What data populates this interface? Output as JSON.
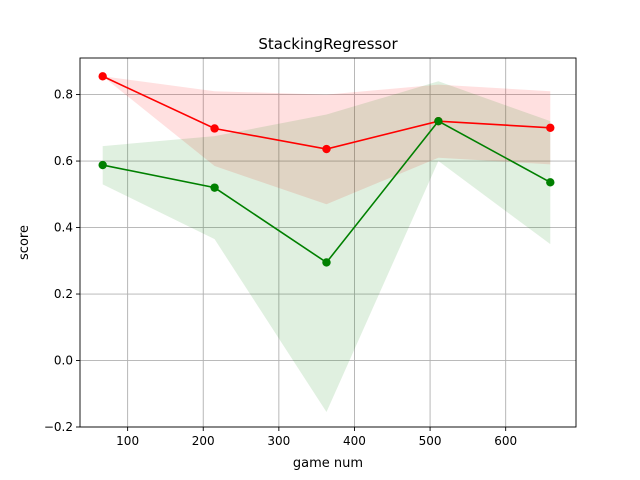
{
  "chart_data": {
    "type": "line",
    "title": "StackingRegressor",
    "xlabel": "game num",
    "ylabel": "score",
    "xlim": [
      37,
      693
    ],
    "ylim": [
      -0.2,
      0.91
    ],
    "xticks": [
      100,
      200,
      300,
      400,
      500,
      600
    ],
    "yticks": [
      -0.2,
      0.0,
      0.2,
      0.4,
      0.6,
      0.8
    ],
    "xtick_labels": [
      "100",
      "200",
      "300",
      "400",
      "500",
      "600"
    ],
    "ytick_labels": [
      "−0.2",
      "0.0",
      "0.2",
      "0.4",
      "0.6",
      "0.8"
    ],
    "grid": true,
    "x": [
      67,
      215,
      363,
      511,
      659
    ],
    "series": [
      {
        "color": "#ff0000",
        "band_color": "#ff0000",
        "values": [
          0.855,
          0.698,
          0.636,
          0.72,
          0.7
        ],
        "upper": [
          0.855,
          0.81,
          0.8,
          0.83,
          0.81
        ],
        "lower": [
          0.855,
          0.585,
          0.47,
          0.61,
          0.59
        ]
      },
      {
        "color": "#008000",
        "band_color": "#008000",
        "values": [
          0.588,
          0.52,
          0.295,
          0.72,
          0.536
        ],
        "upper": [
          0.645,
          0.675,
          0.74,
          0.84,
          0.72
        ],
        "lower": [
          0.53,
          0.365,
          -0.155,
          0.6,
          0.35
        ]
      }
    ]
  }
}
